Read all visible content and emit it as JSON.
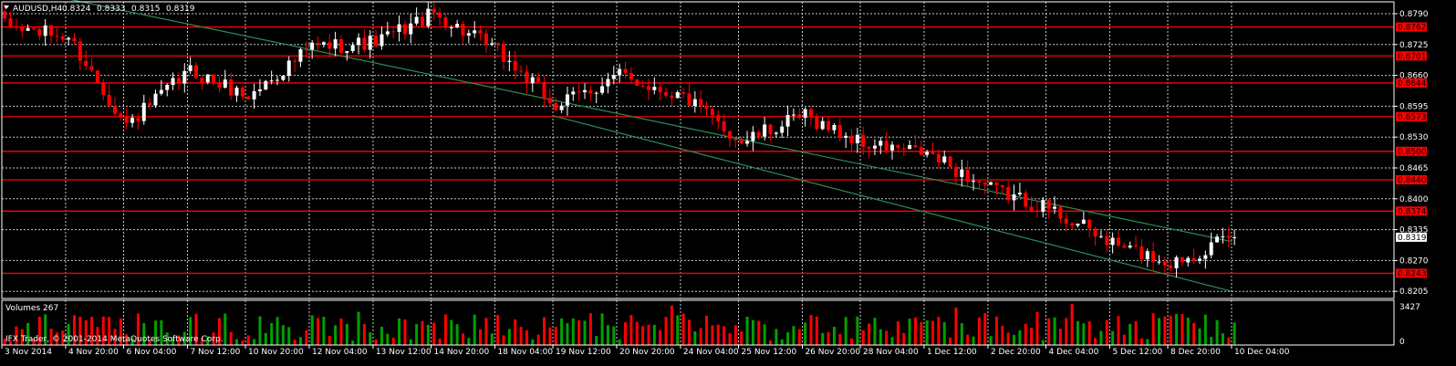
{
  "header": {
    "menu_icon": "triangle-down-icon",
    "symbol_label": "AUDUSD,H4",
    "ohlc": [
      "0.8324",
      "0.8333",
      "0.8315",
      "0.8319"
    ]
  },
  "volume_panel": {
    "title": "Volumes 267",
    "max_label": "3427",
    "min_label": "0"
  },
  "copyright": "IFX Trader, © 2001-2014 MetaQuotes Software Corp.",
  "colors": {
    "background": "#000000",
    "bull": "#ffffff",
    "bear": "#ff0000",
    "grid": "#c8c8c8",
    "level_line": "#ff0000",
    "channel_line": "#2e8b57",
    "volume_bull": "#00a000",
    "volume_bear": "#ff0000",
    "current_price_tag": "#ffffff"
  },
  "chart_data": {
    "type": "candlestick",
    "symbol": "AUDUSD",
    "timeframe": "H4",
    "ylim": [
      0.819,
      0.8815
    ],
    "y_ticks": [
      "0.8790",
      "0.8725",
      "0.8660",
      "0.8595",
      "0.8530",
      "0.8465",
      "0.8400",
      "0.8335",
      "0.8270",
      "0.8205"
    ],
    "x_ticks": [
      "3 Nov 2014",
      "4 Nov 20:00",
      "6 Nov 04:00",
      "7 Nov 12:00",
      "10 Nov 20:00",
      "12 Nov 04:00",
      "13 Nov 12:00",
      "14 Nov 20:00",
      "18 Nov 04:00",
      "19 Nov 12:00",
      "20 Nov 20:00",
      "24 Nov 04:00",
      "25 Nov 12:00",
      "26 Nov 20:00",
      "28 Nov 04:00",
      "1 Dec 12:00",
      "2 Dec 20:00",
      "4 Dec 04:00",
      "5 Dec 12:00",
      "8 Dec 20:00",
      "10 Dec 04:00"
    ],
    "levels": [
      "0.8762",
      "0.8701",
      "0.8644",
      "0.8573",
      "0.8500",
      "0.8440",
      "0.8374",
      "0.8243"
    ],
    "current_price": "0.8319",
    "channel": [
      {
        "from": [
          "3 Nov 2014",
          0.885
        ],
        "to": [
          "10 Dec 04:00",
          0.831
        ]
      },
      {
        "from": [
          "19 Nov 12:00",
          0.8575
        ],
        "to": [
          "10 Dec 04:00",
          0.8205
        ]
      }
    ],
    "path": [
      [
        "3 Nov 2014",
        0.8765
      ],
      [
        "4 Nov 20:00",
        0.874
      ],
      [
        "6 Nov 04:00",
        0.8555
      ],
      [
        "7 Nov 12:00",
        0.867
      ],
      [
        "10 Nov 20:00",
        0.8615
      ],
      [
        "12 Nov 04:00",
        0.872
      ],
      [
        "13 Nov 12:00",
        0.873
      ],
      [
        "14 Nov 20:00",
        0.879
      ],
      [
        "18 Nov 04:00",
        0.871
      ],
      [
        "19 Nov 12:00",
        0.8595
      ],
      [
        "20 Nov 20:00",
        0.866
      ],
      [
        "24 Nov 04:00",
        0.8615
      ],
      [
        "25 Nov 12:00",
        0.852
      ],
      [
        "26 Nov 20:00",
        0.8575
      ],
      [
        "28 Nov 04:00",
        0.8515
      ],
      [
        "1 Dec 12:00",
        0.8495
      ],
      [
        "2 Dec 20:00",
        0.842
      ],
      [
        "4 Dec 04:00",
        0.838
      ],
      [
        "5 Dec 12:00",
        0.8305
      ],
      [
        "8 Dec 20:00",
        0.8265
      ],
      [
        "10 Dec 04:00",
        0.8319
      ]
    ]
  }
}
